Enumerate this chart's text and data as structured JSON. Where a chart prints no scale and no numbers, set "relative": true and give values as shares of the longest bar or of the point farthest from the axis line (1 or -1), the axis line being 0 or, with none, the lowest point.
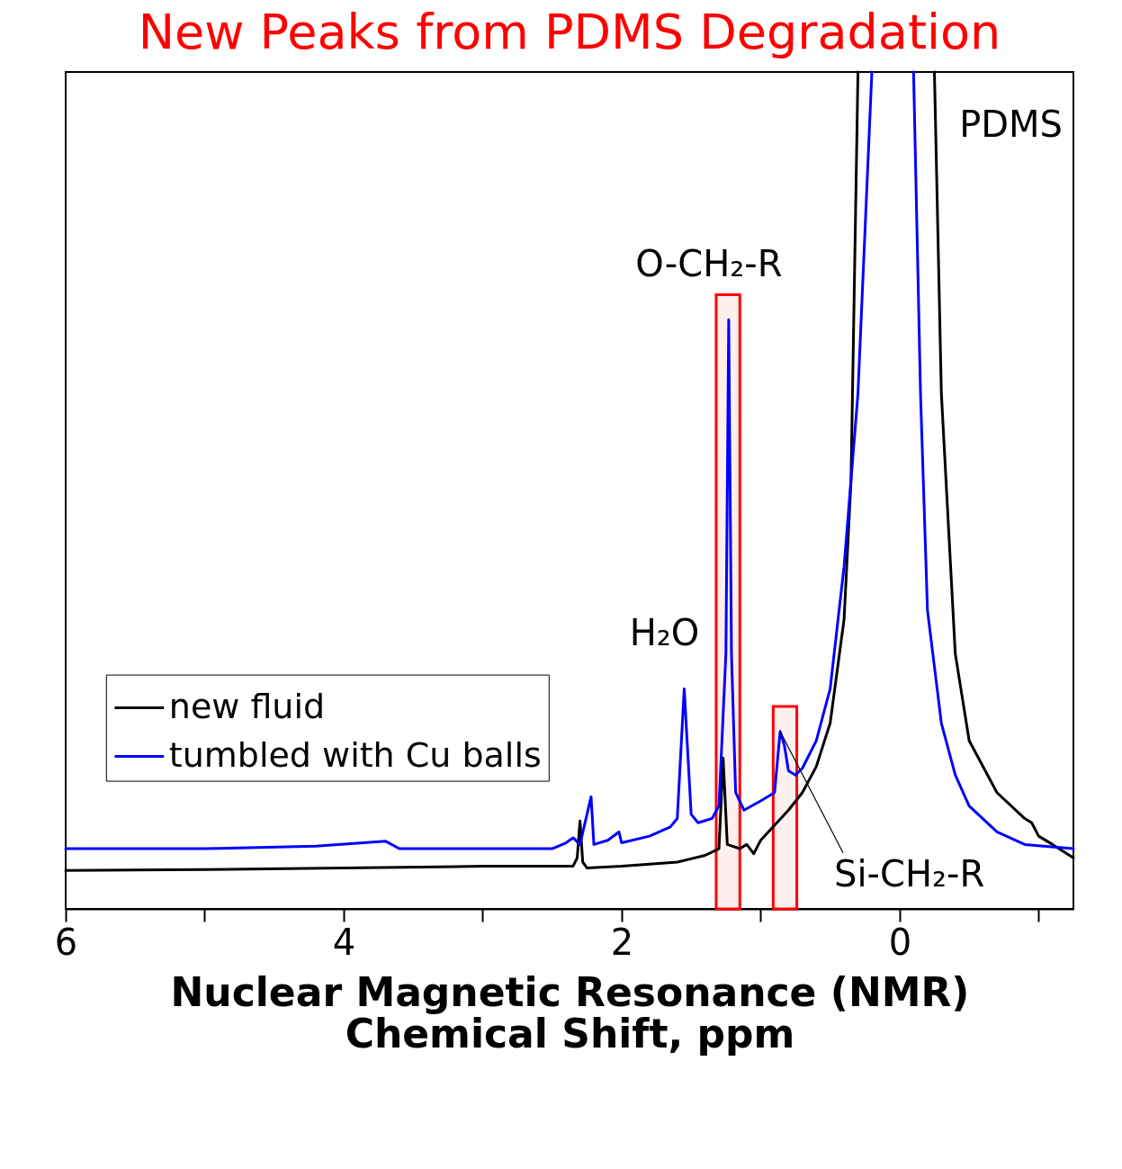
{
  "chart_data": {
    "type": "line",
    "title": "New Peaks from PDMS Degradation",
    "xlabel": "Nuclear Magnetic Resonance (NMR)\nChemical Shift, ppm",
    "relative": true,
    "xlim": [
      6,
      -1.25
    ],
    "xticks": [
      6,
      {
        "value": 5,
        "label": null
      },
      4,
      {
        "value": 3,
        "label": null
      },
      2,
      {
        "value": 1,
        "label": null
      },
      0,
      {
        "value": -1,
        "label": null
      }
    ],
    "legend": "bottom left",
    "series": [
      {
        "name": "new fluid",
        "color": "#000000",
        "x": [
          6,
          5,
          4,
          3,
          2.35,
          2.32,
          2.3,
          2.28,
          2.25,
          2,
          1.6,
          1.4,
          1.3,
          1.27,
          1.24,
          1.15,
          1.1,
          1.05,
          1,
          0.8,
          0.7,
          0.6,
          0.5,
          0.4,
          0.35,
          0.3,
          0.05,
          -0.25,
          -0.3,
          -0.4,
          -0.5,
          -0.7,
          -0.9,
          -0.95,
          -1,
          -1.1,
          -1.25
        ],
        "values": [
          0.046,
          0.047,
          0.049,
          0.051,
          0.051,
          0.061,
          0.105,
          0.056,
          0.049,
          0.051,
          0.056,
          0.064,
          0.072,
          0.18,
          0.077,
          0.072,
          0.077,
          0.066,
          0.082,
          0.118,
          0.139,
          0.17,
          0.222,
          0.346,
          0.512,
          1,
          null,
          1,
          0.616,
          0.305,
          0.201,
          0.139,
          0.108,
          0.103,
          0.087,
          0.077,
          0.061
        ]
      },
      {
        "name": "tumbled with Cu balls",
        "color": "#0000ff",
        "x": [
          6,
          5,
          4.2,
          3.7,
          3.6,
          2.5,
          2.4,
          2.35,
          2.3,
          2.22,
          2.2,
          2.1,
          2.02,
          2,
          1.8,
          1.65,
          1.6,
          1.55,
          1.5,
          1.45,
          1.35,
          1.3,
          1.25,
          1.23,
          1.21,
          1.18,
          1.12,
          1,
          0.9,
          0.86,
          0.83,
          0.8,
          0.75,
          0.7,
          0.6,
          0.5,
          0.4,
          0.3,
          0.2,
          0.05,
          -0.1,
          -0.15,
          -0.2,
          -0.3,
          -0.4,
          -0.5,
          -0.7,
          -0.9,
          -1.25
        ],
        "values": [
          0.072,
          0.072,
          0.075,
          0.081,
          0.072,
          0.072,
          0.079,
          0.085,
          0.077,
          0.134,
          0.077,
          0.082,
          0.092,
          0.079,
          0.087,
          0.098,
          0.108,
          0.263,
          0.113,
          0.103,
          0.108,
          0.123,
          0.305,
          0.704,
          0.305,
          0.139,
          0.118,
          0.129,
          0.139,
          0.212,
          0.196,
          0.165,
          0.16,
          0.168,
          0.201,
          0.263,
          0.409,
          0.616,
          1,
          null,
          1,
          0.616,
          0.357,
          0.222,
          0.16,
          0.123,
          0.092,
          0.077,
          0.072
        ]
      }
    ],
    "bands": [
      {
        "axis": "x",
        "from": 1.32,
        "to": 1.15,
        "color": "#ff0000"
      },
      {
        "axis": "x",
        "from": 0.91,
        "to": 0.74,
        "color": "#ff0000"
      }
    ],
    "annotations": [
      "PDMS",
      {
        "text": "O-CH₂-R",
        "x": 1.23,
        "y": 0.704
      },
      {
        "text": "H₂O",
        "x": 1.55,
        "y": 0.263
      },
      {
        "text": "Si-CH₂-R",
        "x": 0.86,
        "y": 0.212
      }
    ]
  }
}
